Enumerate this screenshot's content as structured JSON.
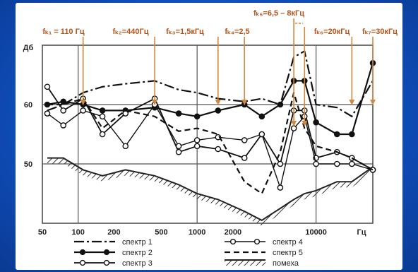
{
  "chart_data": {
    "type": "line",
    "x_scale": "log",
    "xlim": [
      50,
      30000
    ],
    "ylim": [
      40,
      70
    ],
    "grid": true,
    "y_unit": "Дб",
    "x_unit": "Гц",
    "x_ticks": [
      {
        "label": "50",
        "value": 50
      },
      {
        "label": "100",
        "value": 100
      },
      {
        "label": "200",
        "value": 200
      },
      {
        "label": "500",
        "value": 500
      },
      {
        "label": "1000",
        "value": 1000
      },
      {
        "label": "2000",
        "value": 2000
      },
      {
        "label": "10000",
        "value": 10000
      }
    ],
    "y_ticks": [
      {
        "label": "50",
        "value": 50
      },
      {
        "label": "60",
        "value": 60
      }
    ],
    "annotations": [
      {
        "label": "fₖ₁ = 110 Гц",
        "freq": 110
      },
      {
        "label": "fₖ₂=440Гц",
        "freq": 440
      },
      {
        "label": "fₖ₃=1,5кГц",
        "freq": 1500
      },
      {
        "label": "fₖ₄=2,5",
        "freq": 2500
      },
      {
        "label": "fₖ₅=6,5 – 8кГц",
        "freq": 6500,
        "freq_end": 8000
      },
      {
        "label": "fₖ₆=20кГц",
        "freq": 20000
      },
      {
        "label": "fₖ₇=30кГц",
        "freq": 30000
      }
    ],
    "series": [
      {
        "name": "спектр 1",
        "style": "dashdot",
        "x": [
          55,
          75,
          110,
          160,
          250,
          440,
          700,
          1000,
          1500,
          2500,
          3500,
          5000,
          6500,
          8000,
          10000,
          15000,
          20000,
          30000
        ],
        "y": [
          59,
          60,
          62,
          63,
          63.5,
          64,
          62.5,
          62,
          61,
          60.5,
          61,
          60,
          68,
          69,
          60,
          59.5,
          58,
          64
        ]
      },
      {
        "name": "спектр 2",
        "style": "filled",
        "x": [
          55,
          75,
          110,
          160,
          250,
          440,
          700,
          1000,
          1500,
          2500,
          3500,
          5000,
          6500,
          8000,
          10000,
          15000,
          20000,
          30000
        ],
        "y": [
          60,
          60.5,
          60,
          59,
          59,
          59.5,
          58.5,
          58,
          59,
          60,
          58,
          60,
          64,
          64,
          57,
          55,
          55,
          67
        ]
      },
      {
        "name": "спектр 3",
        "style": "open-line",
        "x": [
          55,
          75,
          110,
          160,
          250,
          440,
          700,
          1000,
          1500,
          2500,
          3500,
          5000,
          6500,
          8000,
          10000,
          15000,
          20000,
          30000
        ],
        "y": [
          63,
          59,
          61,
          55,
          58.5,
          61,
          52,
          53,
          52.5,
          51,
          55,
          50,
          59,
          59,
          51,
          52,
          51,
          49
        ]
      },
      {
        "name": "спектр 4",
        "style": "open",
        "x": [
          55,
          75,
          110,
          160,
          250,
          440,
          700,
          1000,
          1500,
          2500,
          3500,
          5000,
          6500,
          8000,
          10000,
          15000,
          20000,
          30000
        ],
        "y": [
          58.5,
          56.5,
          59,
          58,
          53,
          60,
          53,
          54,
          54.5,
          54,
          55,
          46,
          56,
          58,
          50,
          50,
          50,
          49
        ]
      },
      {
        "name": "спектр 5",
        "style": "dashed",
        "x": [
          55,
          75,
          110,
          160,
          250,
          440,
          700,
          1000,
          1500,
          2500,
          3500,
          5000,
          6500,
          8000,
          10000,
          15000,
          20000,
          30000
        ],
        "y": [
          60,
          60,
          61,
          56,
          59,
          58,
          55.5,
          56,
          55,
          47,
          45,
          52,
          62,
          56,
          53,
          52,
          51,
          49
        ]
      },
      {
        "name": "помеха",
        "style": "hatched",
        "x": [
          55,
          75,
          110,
          160,
          250,
          440,
          700,
          1000,
          1500,
          2500,
          3500,
          5000,
          6500,
          8000,
          10000,
          15000,
          20000,
          30000
        ],
        "y": [
          51,
          51,
          49,
          48,
          49,
          48,
          46.5,
          45,
          44,
          42,
          40.5,
          42.5,
          44,
          45,
          45.5,
          47,
          47,
          49.5
        ]
      }
    ]
  }
}
